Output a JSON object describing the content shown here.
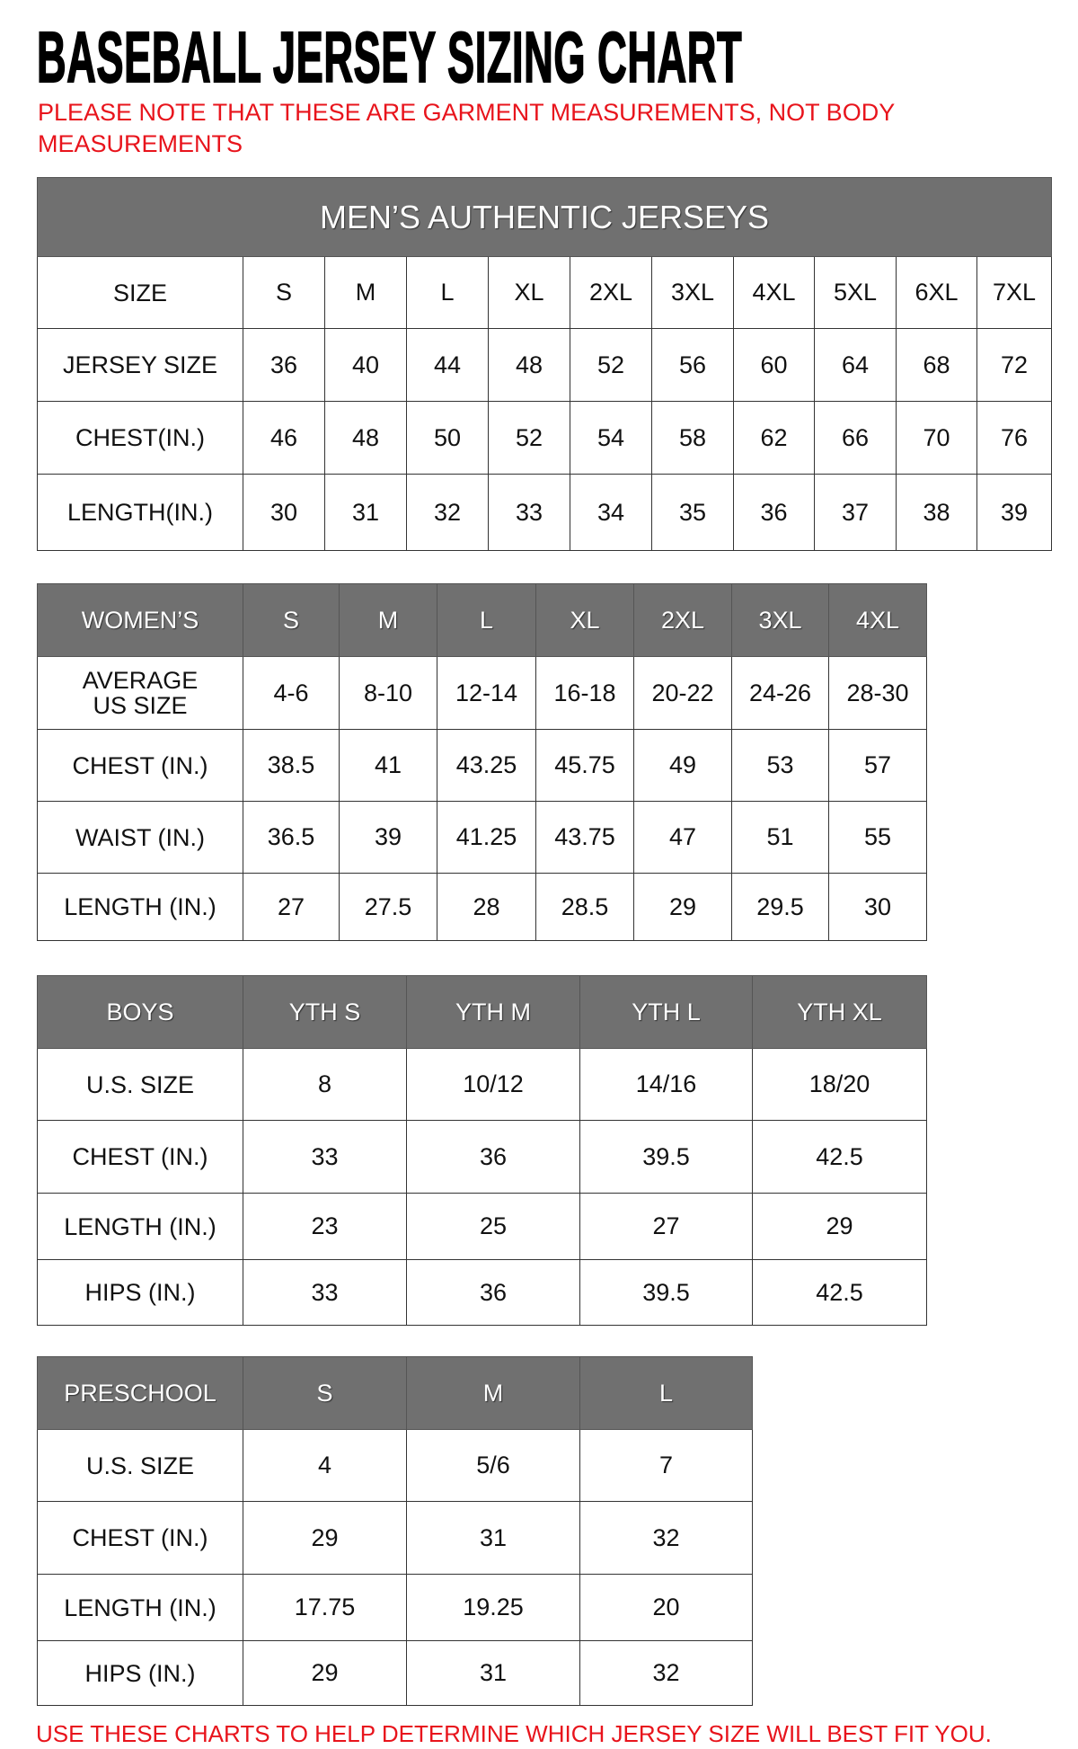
{
  "title": "BASEBALL JERSEY SIZING CHART",
  "note": "PLEASE NOTE THAT THESE ARE GARMENT MEASUREMENTS, NOT BODY MEASUREMENTS",
  "footer": "USE THESE CHARTS TO HELP DETERMINE WHICH JERSEY SIZE WILL BEST FIT YOU.",
  "colors": {
    "header_bg": "#707070",
    "note_red": "#e8141c"
  },
  "tables": [
    {
      "id": "mens",
      "banner": "MEN’S AUTHENTIC JERSEYS",
      "header_dark": false,
      "header": [
        "SIZE",
        "S",
        "M",
        "L",
        "XL",
        "2XL",
        "3XL",
        "4XL",
        "5XL",
        "6XL",
        "7XL"
      ],
      "rows": [
        {
          "label": "JERSEY SIZE",
          "values": [
            "36",
            "40",
            "44",
            "48",
            "52",
            "56",
            "60",
            "64",
            "68",
            "72"
          ]
        },
        {
          "label": "CHEST(IN.)",
          "values": [
            "46",
            "48",
            "50",
            "52",
            "54",
            "58",
            "62",
            "66",
            "70",
            "76"
          ]
        },
        {
          "label": "LENGTH(IN.)",
          "values": [
            "30",
            "31",
            "32",
            "33",
            "34",
            "35",
            "36",
            "37",
            "38",
            "39"
          ]
        }
      ]
    },
    {
      "id": "womens",
      "header_dark": true,
      "header": [
        "WOMEN’S",
        "S",
        "M",
        "L",
        "XL",
        "2XL",
        "3XL",
        "4XL"
      ],
      "rows": [
        {
          "label": "AVERAGE US SIZE",
          "values": [
            "4-6",
            "8-10",
            "12-14",
            "16-18",
            "20-22",
            "24-26",
            "28-30"
          ]
        },
        {
          "label": "CHEST (IN.)",
          "values": [
            "38.5",
            "41",
            "43.25",
            "45.75",
            "49",
            "53",
            "57"
          ]
        },
        {
          "label": "WAIST (IN.)",
          "values": [
            "36.5",
            "39",
            "41.25",
            "43.75",
            "47",
            "51",
            "55"
          ]
        },
        {
          "label": "LENGTH (IN.)",
          "values": [
            "27",
            "27.5",
            "28",
            "28.5",
            "29",
            "29.5",
            "30"
          ]
        }
      ]
    },
    {
      "id": "boys",
      "header_dark": true,
      "header": [
        "BOYS",
        "YTH S",
        "YTH M",
        "YTH L",
        "YTH XL"
      ],
      "rows": [
        {
          "label": "U.S. SIZE",
          "values": [
            "8",
            "10/12",
            "14/16",
            "18/20"
          ]
        },
        {
          "label": "CHEST (IN.)",
          "values": [
            "33",
            "36",
            "39.5",
            "42.5"
          ]
        },
        {
          "label": "LENGTH (IN.)",
          "values": [
            "23",
            "25",
            "27",
            "29"
          ]
        },
        {
          "label": "HIPS (IN.)",
          "values": [
            "33",
            "36",
            "39.5",
            "42.5"
          ]
        }
      ]
    },
    {
      "id": "preschool",
      "header_dark": true,
      "header": [
        "PRESCHOOL",
        "S",
        "M",
        "L"
      ],
      "rows": [
        {
          "label": "U.S. SIZE",
          "values": [
            "4",
            "5/6",
            "7"
          ]
        },
        {
          "label": "CHEST (IN.)",
          "values": [
            "29",
            "31",
            "32"
          ]
        },
        {
          "label": "LENGTH (IN.)",
          "values": [
            "17.75",
            "19.25",
            "20"
          ]
        },
        {
          "label": "HIPS (IN.)",
          "values": [
            "29",
            "31",
            "32"
          ]
        }
      ]
    }
  ]
}
